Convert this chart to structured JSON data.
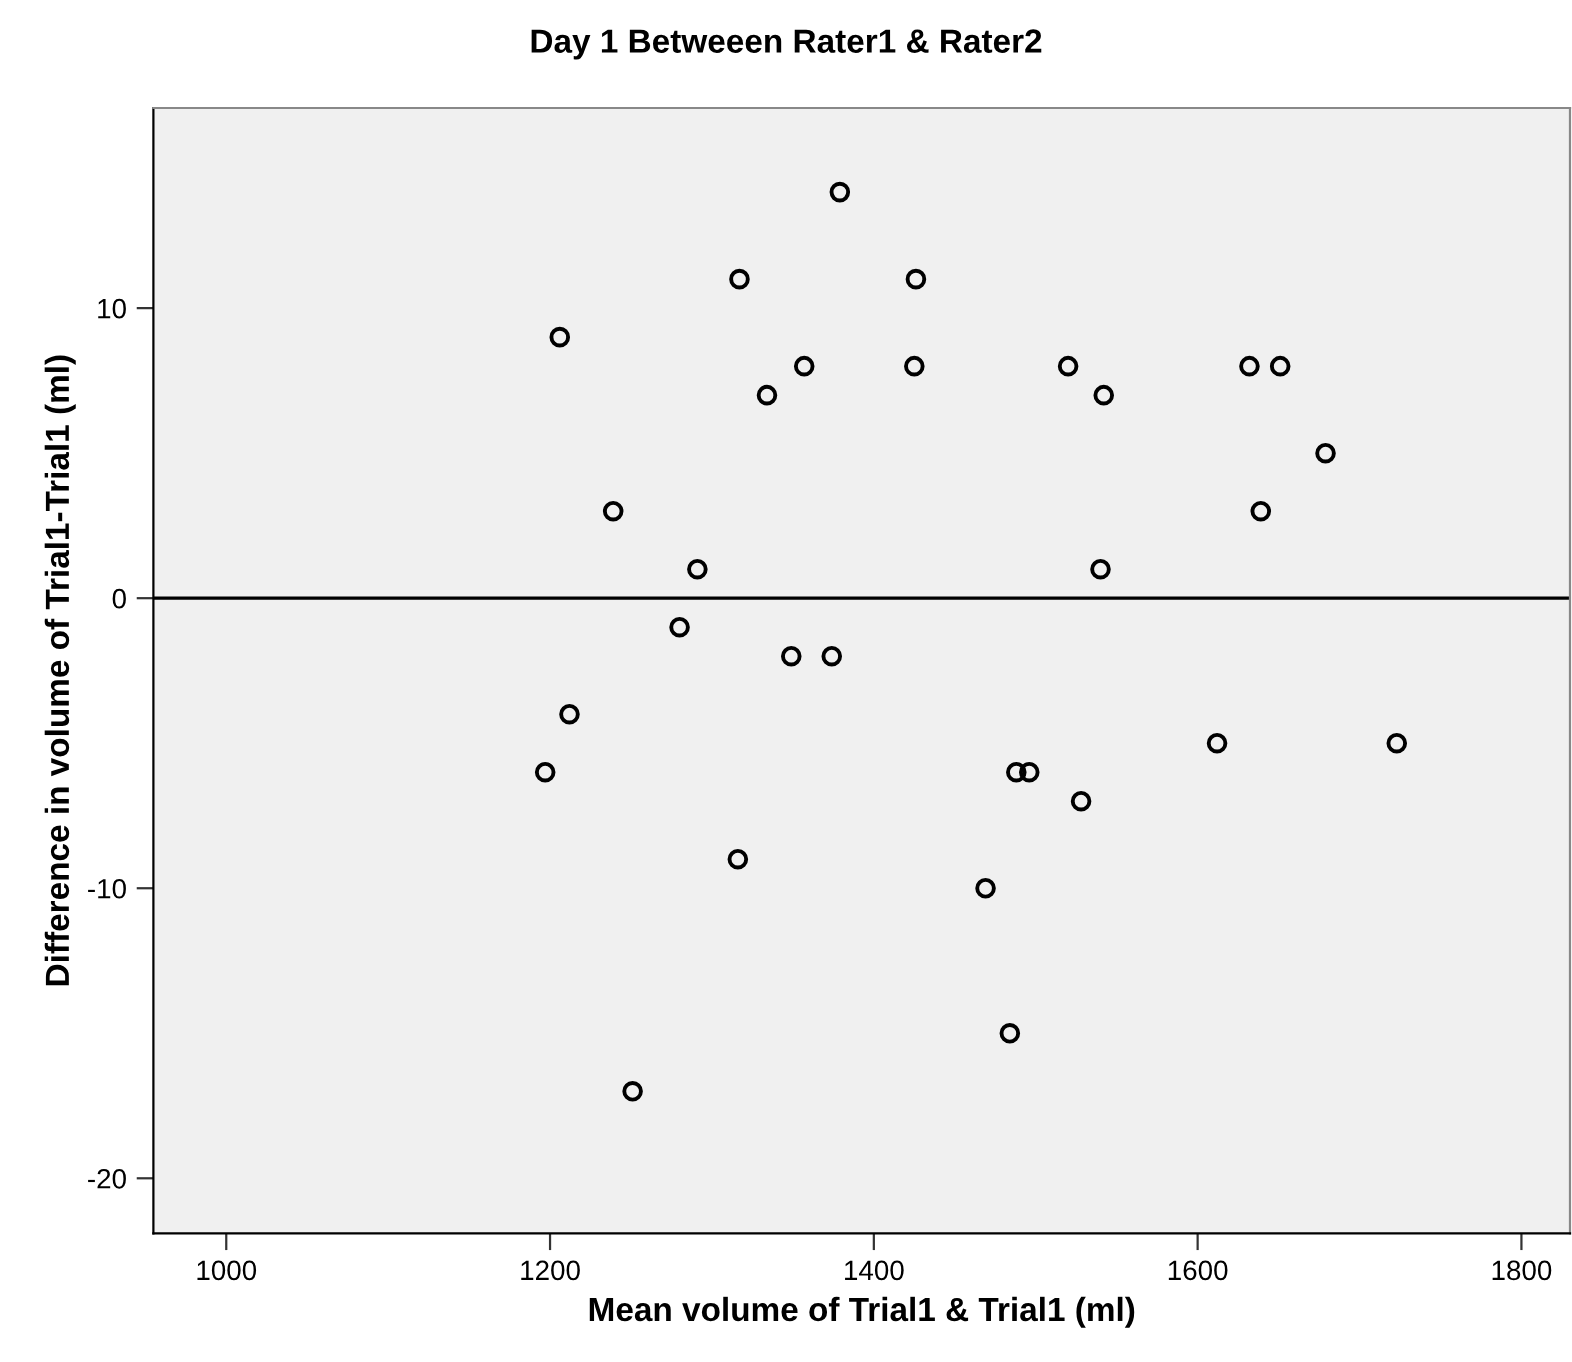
{
  "chart_data": {
    "type": "scatter",
    "title": "Day 1 Betweeen Rater1 & Rater2",
    "xlabel": "Mean volume of Trial1 & Trial1 (ml)",
    "ylabel": "Difference in volume of Trial1-Trial1 (ml)",
    "series": [
      {
        "color": "#000000",
        "x": [
          1379,
          1317,
          1206,
          1357,
          1334,
          1239,
          1291,
          1280,
          1426,
          1425,
          1520,
          1542,
          1632,
          1651,
          1679,
          1639,
          1540,
          1349,
          1374,
          1212,
          1197,
          1316,
          1251,
          1612,
          1723,
          1488,
          1496,
          1528,
          1469,
          1484
        ],
        "values": [
          14,
          11,
          9,
          8,
          7,
          3,
          1,
          -1,
          11,
          8,
          8,
          7,
          8,
          8,
          5,
          3,
          1,
          -2,
          -2,
          -4,
          -6,
          -9,
          -17,
          -5,
          -5,
          -6,
          -6,
          -7,
          -10,
          -15
        ]
      }
    ],
    "marker": "circle",
    "xlim": [
      955,
      1830
    ],
    "xticks": [
      1000,
      1200,
      1400,
      1600,
      1800
    ],
    "ylim": [
      -21.9,
      16.9
    ],
    "yticks": [
      -20,
      -10,
      0,
      10
    ],
    "ref_lines": [
      {
        "axis": "y",
        "value": 0,
        "color": "#000000"
      }
    ],
    "grid": false,
    "legend": false
  }
}
